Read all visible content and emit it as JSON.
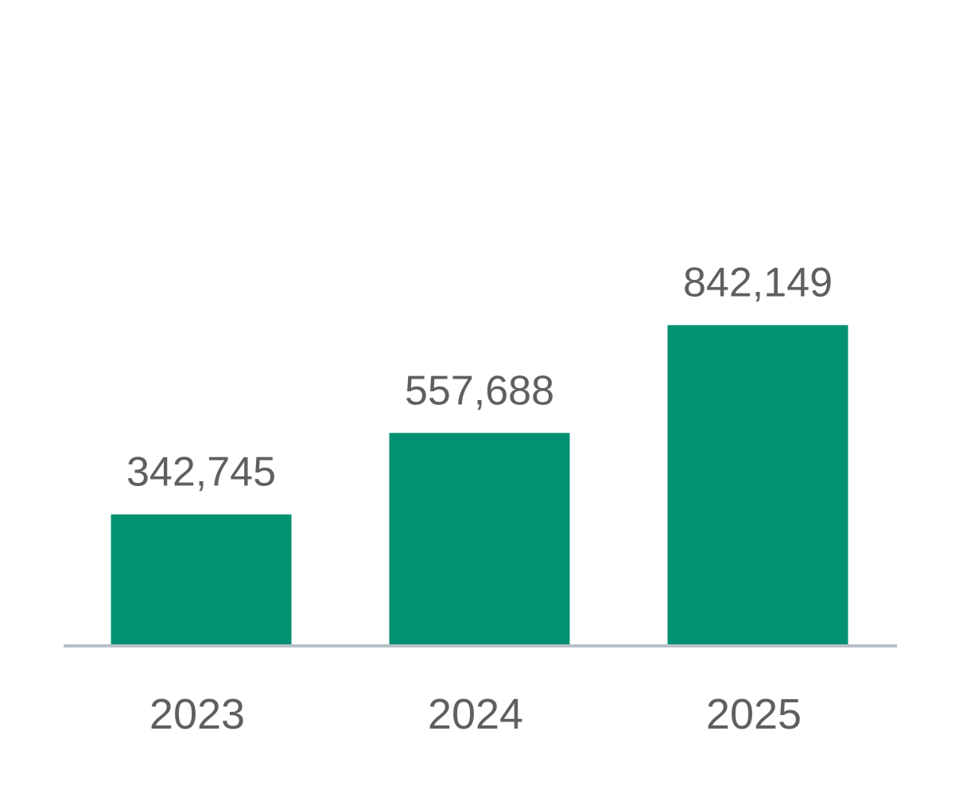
{
  "chart_data": {
    "type": "bar",
    "title": "",
    "xlabel": "",
    "ylabel": "",
    "categories": [
      "2023",
      "2024",
      "2025"
    ],
    "values": [
      342745,
      557688,
      842149
    ],
    "value_labels": [
      "342,745",
      "557,688",
      "842,149"
    ],
    "ylim": [
      0,
      1700000
    ],
    "grid": false,
    "legend": "none",
    "colors": {
      "bar": "#039271",
      "baseline": "#b6c0c8",
      "text": "#5f5f5f"
    }
  }
}
